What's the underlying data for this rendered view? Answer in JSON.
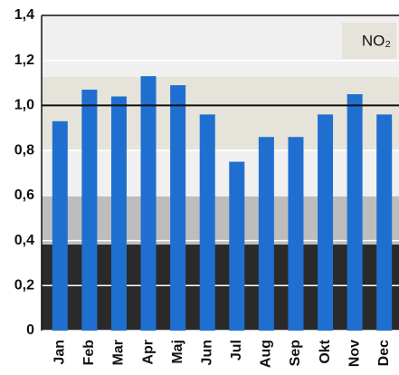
{
  "chart_data": {
    "type": "bar",
    "legend_label": "NO₂",
    "categories": [
      "Jan",
      "Feb",
      "Mar",
      "Apr",
      "Maj",
      "Jun",
      "Jul",
      "Aug",
      "Sep",
      "Okt",
      "Nov",
      "Dec"
    ],
    "values": [
      0.93,
      1.07,
      1.04,
      1.13,
      1.09,
      0.96,
      0.75,
      0.86,
      0.86,
      0.96,
      1.05,
      0.96
    ],
    "color": "#1f6fd1",
    "reference_line": 1.0,
    "ylim": [
      0,
      1.4
    ],
    "yticks": [
      0,
      {
        "value": 0.2,
        "label": "0,2"
      },
      {
        "value": 0.4,
        "label": "0,4"
      },
      {
        "value": 0.6,
        "label": "0,6"
      },
      {
        "value": 0.8,
        "label": "0,8"
      },
      {
        "value": 1.0,
        "label": "1,0"
      },
      {
        "value": 1.2,
        "label": "1,2"
      },
      {
        "value": 1.4,
        "label": "1,4"
      }
    ],
    "grid": true
  }
}
